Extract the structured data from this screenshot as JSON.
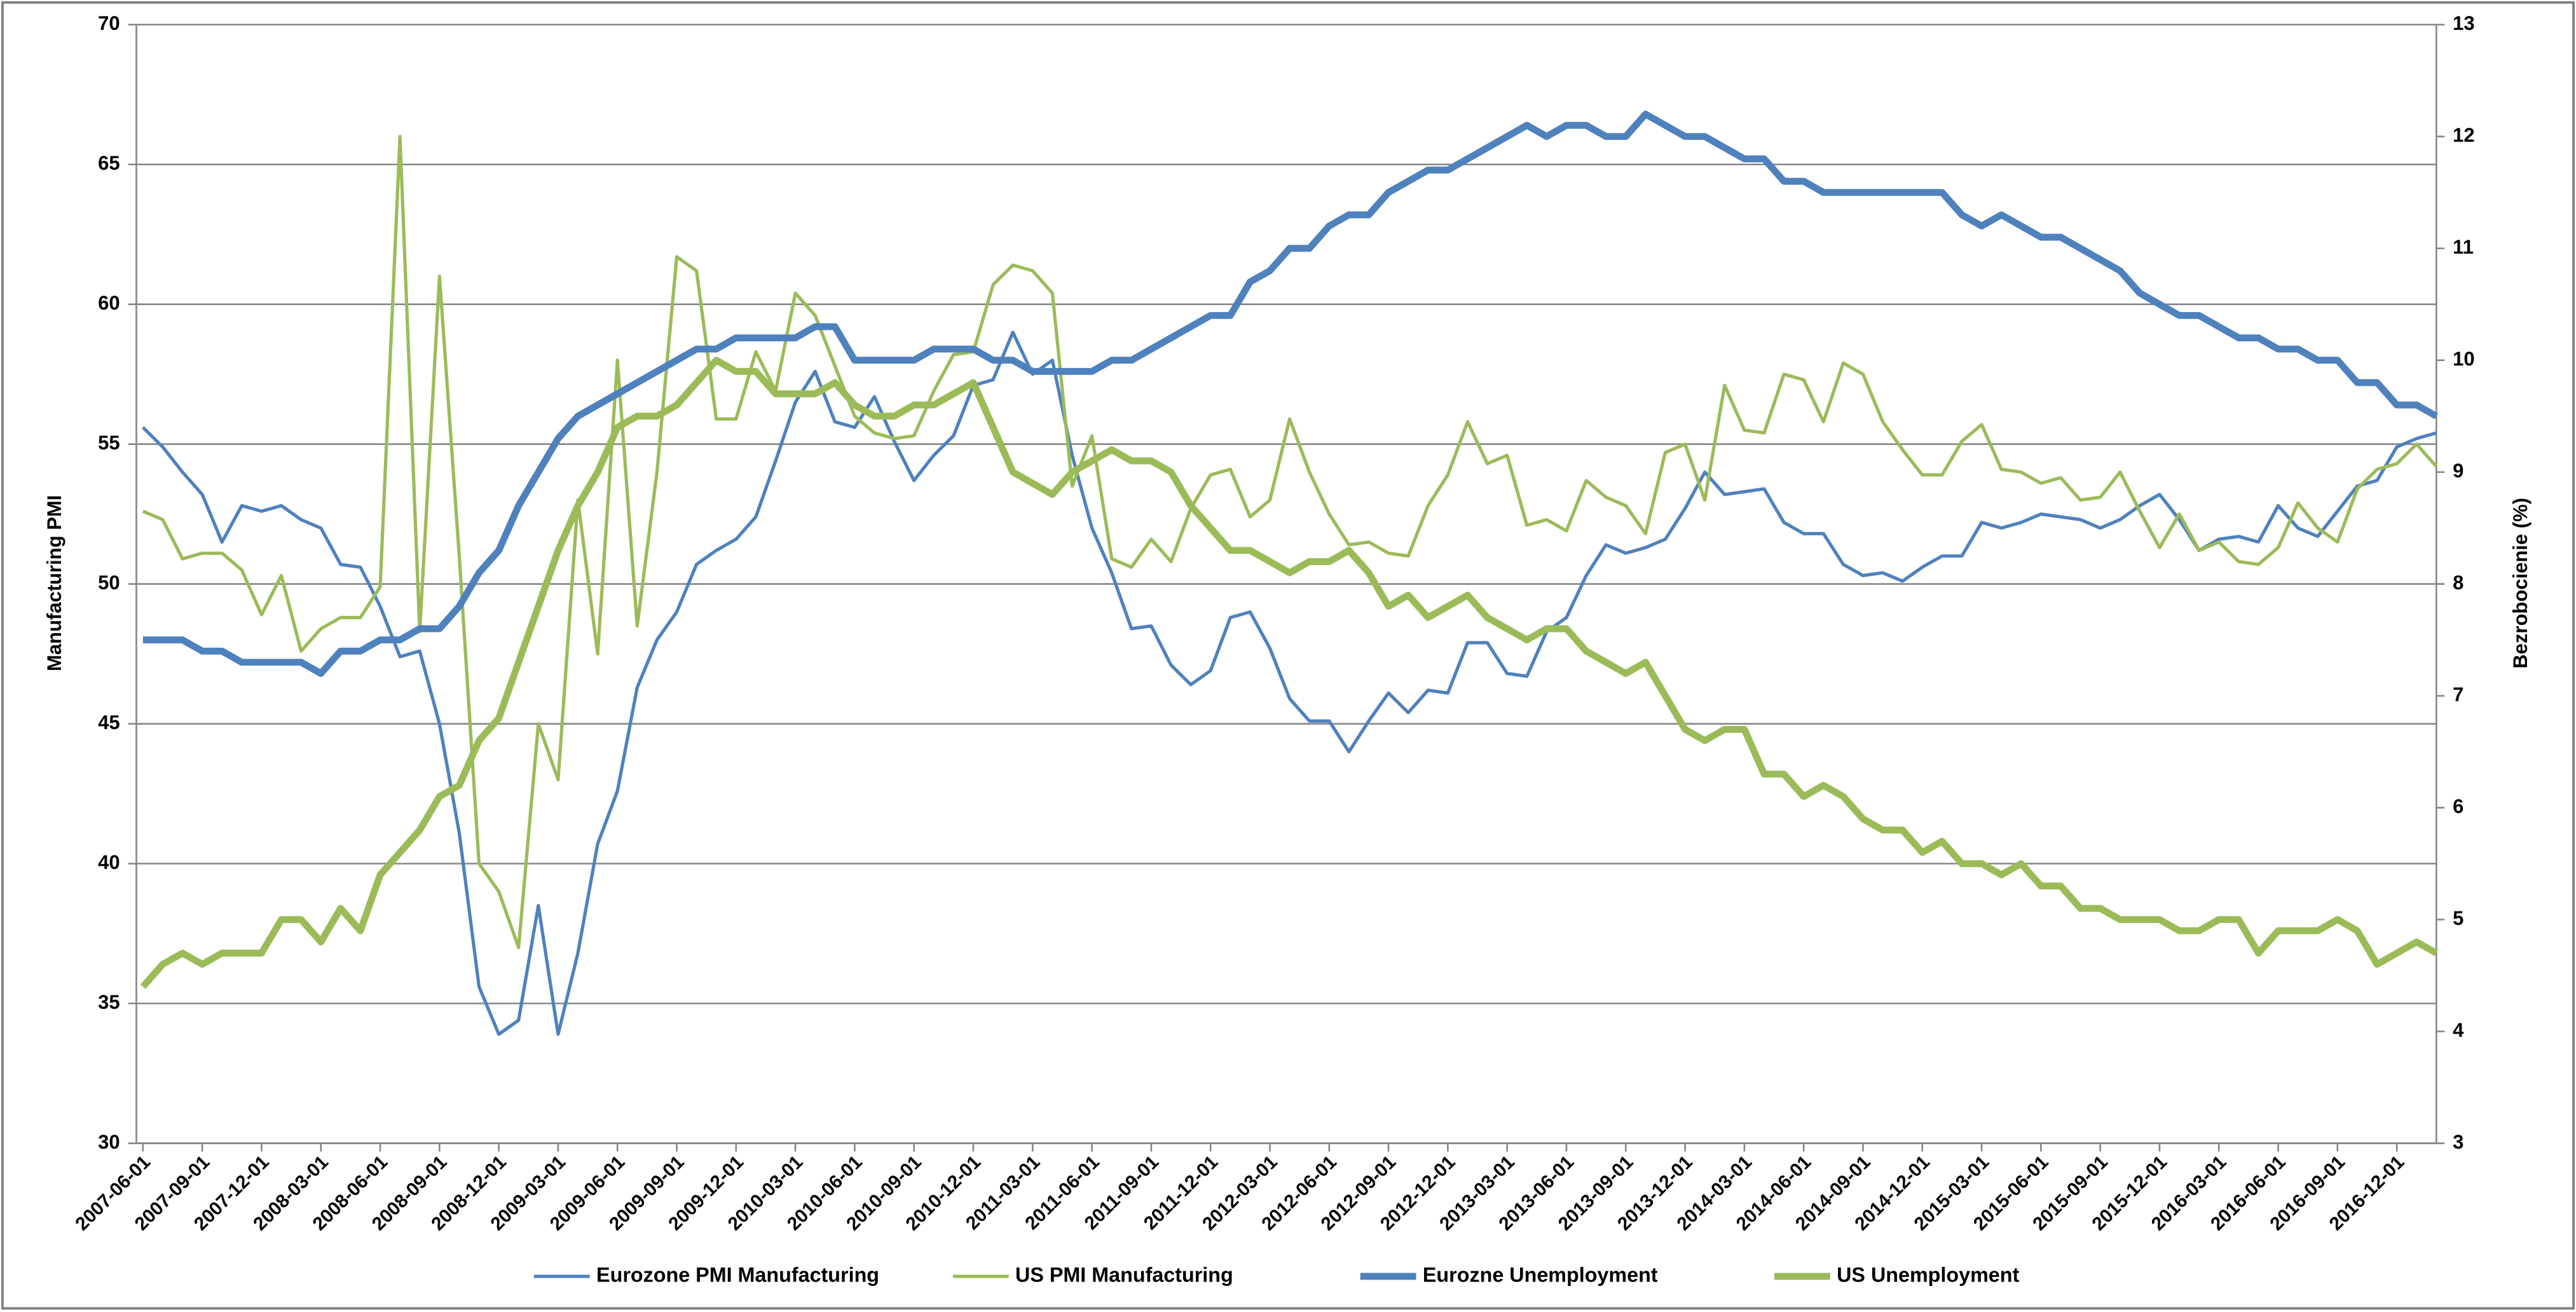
{
  "chart_data": {
    "type": "line",
    "ylabel": "Manufacturing PMI",
    "y2label": "Bezrobocienie (%)",
    "categories": [
      "2007-06-01",
      null,
      null,
      "2007-09-01",
      null,
      null,
      "2007-12-01",
      null,
      null,
      "2008-03-01",
      null,
      null,
      "2008-06-01",
      null,
      null,
      "2008-09-01",
      null,
      null,
      "2008-12-01",
      null,
      null,
      "2009-03-01",
      null,
      null,
      "2009-06-01",
      null,
      null,
      "2009-09-01",
      null,
      null,
      "2009-12-01",
      null,
      null,
      "2010-03-01",
      null,
      null,
      "2010-06-01",
      null,
      null,
      "2010-09-01",
      null,
      null,
      "2010-12-01",
      null,
      null,
      "2011-03-01",
      null,
      null,
      "2011-06-01",
      null,
      null,
      "2011-09-01",
      null,
      null,
      "2011-12-01",
      null,
      null,
      "2012-03-01",
      null,
      null,
      "2012-06-01",
      null,
      null,
      "2012-09-01",
      null,
      null,
      "2012-12-01",
      null,
      null,
      "2013-03-01",
      null,
      null,
      "2013-06-01",
      null,
      null,
      "2013-09-01",
      null,
      null,
      "2013-12-01",
      null,
      null,
      "2014-03-01",
      null,
      null,
      "2014-06-01",
      null,
      null,
      "2014-09-01",
      null,
      null,
      "2014-12-01",
      null,
      null,
      "2015-03-01",
      null,
      null,
      "2015-06-01",
      null,
      null,
      "2015-09-01",
      null,
      null,
      "2015-12-01",
      null,
      null,
      "2016-03-01",
      null,
      null,
      "2016-06-01",
      null,
      null,
      "2016-09-01",
      null,
      null,
      "2016-12-01",
      null,
      null
    ],
    "series": [
      {
        "name": "Eurozone PMI Manufacturing",
        "color": "#4f81bd",
        "width": "thin",
        "values": [
          55.6,
          54.9,
          54.0,
          53.2,
          51.5,
          52.8,
          52.6,
          52.8,
          52.3,
          52.0,
          50.7,
          50.6,
          49.2,
          47.4,
          47.6,
          45.0,
          41.1,
          35.6,
          33.9,
          34.4,
          38.5,
          33.9,
          36.8,
          40.7,
          42.6,
          46.3,
          48.0,
          49.0,
          50.7,
          51.2,
          51.6,
          52.4,
          54.4,
          56.5,
          57.6,
          55.8,
          55.6,
          56.7,
          55.1,
          53.7,
          54.6,
          55.3,
          57.1,
          57.3,
          59.0,
          57.5,
          58.0,
          54.6,
          52.0,
          50.4,
          48.4,
          48.5,
          47.1,
          46.4,
          46.9,
          48.8,
          49.0,
          47.7,
          45.9,
          45.1,
          45.1,
          44.0,
          45.1,
          46.1,
          45.4,
          46.2,
          46.1,
          47.9,
          47.9,
          46.8,
          46.7,
          48.3,
          48.8,
          50.3,
          51.4,
          51.1,
          51.3,
          51.6,
          52.7,
          54.0,
          53.2,
          53.3,
          53.4,
          52.2,
          51.8,
          51.8,
          50.7,
          50.3,
          50.4,
          50.1,
          50.6,
          51.0,
          51.0,
          52.2,
          52.0,
          52.2,
          52.5,
          52.4,
          52.3,
          52.0,
          52.3,
          52.8,
          53.2,
          52.3,
          51.2,
          51.6,
          51.7,
          51.5,
          52.8,
          52.0,
          51.7,
          52.6,
          53.5,
          53.7,
          54.9,
          55.2,
          55.4
        ]
      },
      {
        "name": "US PMI Manufacturing",
        "color": "#9bbb59",
        "width": "thin",
        "values": [
          52.6,
          52.3,
          50.9,
          51.1,
          51.1,
          50.5,
          48.9,
          50.3,
          47.6,
          48.4,
          48.8,
          48.8,
          49.9,
          66.0,
          48.3,
          61.0,
          51.0,
          40.0,
          39.0,
          37.0,
          45.0,
          43.0,
          53.0,
          47.5,
          58.0,
          48.5,
          54.0,
          61.7,
          61.2,
          55.9,
          55.9,
          58.3,
          56.9,
          60.4,
          59.6,
          57.8,
          56.0,
          55.4,
          55.2,
          55.3,
          56.9,
          58.2,
          58.3,
          60.7,
          61.4,
          61.2,
          60.4,
          53.5,
          55.3,
          50.9,
          50.6,
          51.6,
          50.8,
          52.7,
          53.9,
          54.1,
          52.4,
          53.0,
          55.9,
          54.0,
          52.5,
          51.4,
          51.5,
          51.1,
          51.0,
          52.8,
          53.9,
          55.8,
          54.3,
          54.6,
          52.1,
          52.3,
          51.9,
          53.7,
          53.1,
          52.8,
          51.8,
          54.7,
          55.0,
          53.0,
          57.1,
          55.5,
          55.4,
          57.5,
          57.3,
          55.8,
          57.9,
          57.5,
          55.8,
          54.8,
          53.9,
          53.9,
          55.1,
          55.7,
          54.1,
          54.0,
          53.6,
          53.8,
          53.0,
          53.1,
          54.0,
          52.6,
          51.3,
          52.5,
          51.2,
          51.5,
          50.8,
          50.7,
          51.3,
          52.9,
          52.0,
          51.5,
          53.4,
          54.1,
          54.3,
          55.0,
          54.2
        ]
      },
      {
        "name": "Eurozne Unemployment",
        "color": "#4f81bd",
        "width": "thick",
        "axis": "y2",
        "values": [
          7.5,
          7.5,
          7.5,
          7.4,
          7.4,
          7.3,
          7.3,
          7.3,
          7.3,
          7.2,
          7.4,
          7.4,
          7.5,
          7.5,
          7.6,
          7.6,
          7.8,
          8.1,
          8.3,
          8.7,
          9.0,
          9.3,
          9.5,
          9.6,
          9.7,
          9.8,
          9.9,
          10.0,
          10.1,
          10.1,
          10.2,
          10.2,
          10.2,
          10.2,
          10.3,
          10.3,
          10.0,
          10.0,
          10.0,
          10.0,
          10.1,
          10.1,
          10.1,
          10.0,
          10.0,
          9.9,
          9.9,
          9.9,
          9.9,
          10.0,
          10.0,
          10.1,
          10.2,
          10.3,
          10.4,
          10.4,
          10.7,
          10.8,
          11.0,
          11.0,
          11.2,
          11.3,
          11.3,
          11.5,
          11.6,
          11.7,
          11.7,
          11.8,
          11.9,
          12.0,
          12.1,
          12.0,
          12.1,
          12.1,
          12.0,
          12.0,
          12.2,
          12.1,
          12.0,
          12.0,
          11.9,
          11.8,
          11.8,
          11.6,
          11.6,
          11.5,
          11.5,
          11.5,
          11.5,
          11.5,
          11.5,
          11.5,
          11.3,
          11.2,
          11.3,
          11.2,
          11.1,
          11.1,
          11.0,
          10.9,
          10.8,
          10.6,
          10.5,
          10.4,
          10.4,
          10.3,
          10.2,
          10.2,
          10.1,
          10.1,
          10.0,
          10.0,
          9.8,
          9.8,
          9.6,
          9.6,
          9.5
        ]
      },
      {
        "name": "US Unemployment",
        "color": "#9bbb59",
        "width": "thick",
        "axis": "y2",
        "values": [
          4.4,
          4.6,
          4.7,
          4.6,
          4.7,
          4.7,
          4.7,
          5.0,
          5.0,
          4.8,
          5.1,
          4.9,
          5.4,
          5.6,
          5.8,
          6.1,
          6.2,
          6.6,
          6.8,
          7.3,
          7.8,
          8.3,
          8.7,
          9.0,
          9.4,
          9.5,
          9.5,
          9.6,
          9.8,
          10.0,
          9.9,
          9.9,
          9.7,
          9.7,
          9.7,
          9.8,
          9.6,
          9.5,
          9.5,
          9.6,
          9.6,
          9.7,
          9.8,
          9.4,
          9.0,
          8.9,
          8.8,
          9.0,
          9.1,
          9.2,
          9.1,
          9.1,
          9.0,
          8.7,
          8.5,
          8.3,
          8.3,
          8.2,
          8.1,
          8.2,
          8.2,
          8.3,
          8.1,
          7.8,
          7.9,
          7.7,
          7.8,
          7.9,
          7.7,
          7.6,
          7.5,
          7.6,
          7.6,
          7.4,
          7.3,
          7.2,
          7.3,
          7.0,
          6.7,
          6.6,
          6.7,
          6.7,
          6.3,
          6.3,
          6.1,
          6.2,
          6.1,
          5.9,
          5.8,
          5.8,
          5.6,
          5.7,
          5.5,
          5.5,
          5.4,
          5.5,
          5.3,
          5.3,
          5.1,
          5.1,
          5.0,
          5.0,
          5.0,
          4.9,
          4.9,
          5.0,
          5.0,
          4.7,
          4.9,
          4.9,
          4.9,
          5.0,
          4.9,
          4.6,
          4.7,
          4.8,
          4.7
        ]
      }
    ],
    "ylim": [
      30,
      70
    ],
    "yticks": [
      30,
      35,
      40,
      45,
      50,
      55,
      60,
      65,
      70
    ],
    "y2lim": [
      3,
      13
    ],
    "y2ticks": [
      3,
      4,
      5,
      6,
      7,
      8,
      9,
      10,
      11,
      12,
      13
    ],
    "grid": true,
    "legend": "bottom"
  }
}
